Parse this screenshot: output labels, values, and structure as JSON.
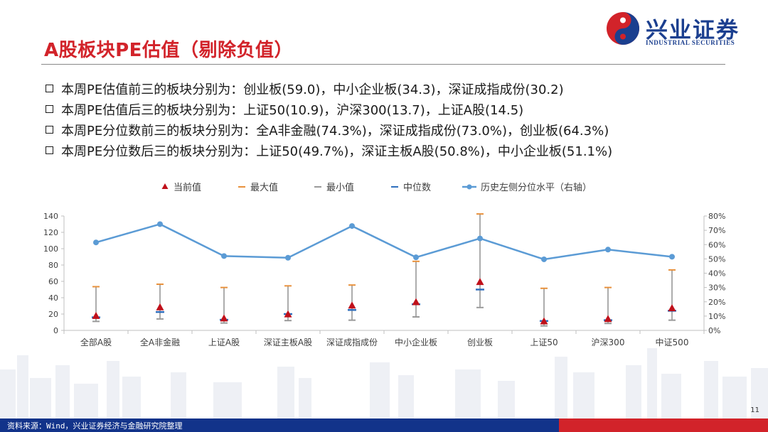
{
  "header": {
    "title": "A股板块PE估值（剔除负值）",
    "logo_cn": "兴业证券",
    "logo_en": "INDUSTRIAL SECURITIES"
  },
  "bullets": [
    "本周PE估值前三的板块分别为：创业板(59.0)，中小企业板(34.3)，深证成指成份(30.2)",
    "本周PE估值后三的板块分别为：上证50(10.9)，沪深300(13.7)，上证A股(14.5)",
    "本周PE分位数前三的板块分别为：全A非金融(74.3%)，深证成指成份(73.0%)，创业板(64.3%)",
    "本周PE分位数后三的板块分别为：上证50(49.7%)，深证主板A股(50.8%)，中小企业板(51.1%)"
  ],
  "chart_data": {
    "type": "line",
    "categories": [
      "全部A股",
      "全A非金融",
      "上证A股",
      "深证主板A股",
      "深证成指成份",
      "中小企业板",
      "创业板",
      "上证50",
      "沪深300",
      "中证500"
    ],
    "legend": [
      "当前值",
      "最大值",
      "最小值",
      "中位数",
      "历史左侧分位水平（右轴）"
    ],
    "legend_position": "top",
    "y_left": {
      "min": 0,
      "max": 140,
      "ticks": [
        0,
        20,
        40,
        60,
        80,
        100,
        120,
        140
      ]
    },
    "y_right": {
      "min": 0,
      "max": 80,
      "ticks": [
        "0%",
        "10%",
        "20%",
        "30%",
        "40%",
        "50%",
        "60%",
        "70%",
        "80%"
      ]
    },
    "series": [
      {
        "name": "当前值",
        "values": [
          17.5,
          28.0,
          14.5,
          19.5,
          30.2,
          34.3,
          59.0,
          10.9,
          13.7,
          27.0
        ]
      },
      {
        "name": "最大值",
        "values": [
          53.5,
          56.5,
          52.5,
          54.5,
          55.5,
          84.5,
          142.5,
          51.5,
          52.5,
          74.0
        ]
      },
      {
        "name": "最小值",
        "values": [
          11.0,
          14.0,
          9.0,
          12.0,
          12.5,
          16.5,
          28.0,
          5.5,
          8.5,
          12.5
        ]
      },
      {
        "name": "中位数",
        "values": [
          16.0,
          22.5,
          13.0,
          20.0,
          25.0,
          32.0,
          50.0,
          11.5,
          12.5,
          24.0
        ]
      },
      {
        "name": "历史左侧分位水平（右轴）",
        "values": [
          61.5,
          74.3,
          52.0,
          50.8,
          73.0,
          51.1,
          64.3,
          49.7,
          56.5,
          51.5
        ]
      }
    ],
    "colors": {
      "current": "#c0101a",
      "max": "#e8913c",
      "min": "#9a9a9a",
      "median": "#2f6fbd",
      "percentile": "#5b9bd5",
      "axis": "#bfbfbf",
      "text": "#404040"
    }
  },
  "footer": {
    "source": "资料来源：Wind，兴业证券经济与金融研究院整理",
    "page": "11"
  }
}
